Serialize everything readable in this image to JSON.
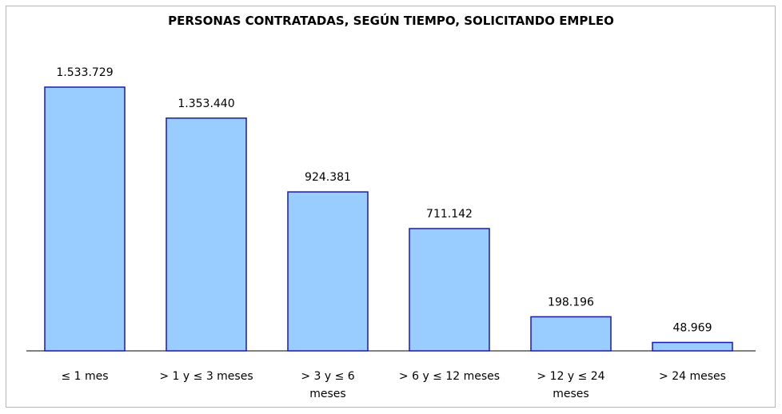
{
  "chart_data": {
    "type": "bar",
    "title": "PERSONAS CONTRATADAS, SEGÚN TIEMPO, SOLICITANDO EMPLEO",
    "categories": [
      "≤ 1 mes",
      "> 1 y ≤ 3 meses",
      "> 3 y  ≤ 6\nmeses",
      "> 6 y ≤ 12 meses",
      "> 12 y ≤ 24\nmeses",
      "> 24 meses"
    ],
    "values": [
      1533729,
      1353440,
      924381,
      711142,
      198196,
      48969
    ],
    "value_labels": [
      "1.533.729",
      "1.353.440",
      "924.381",
      "711.142",
      "198.196",
      "48.969"
    ],
    "color": "#99ccff"
  }
}
